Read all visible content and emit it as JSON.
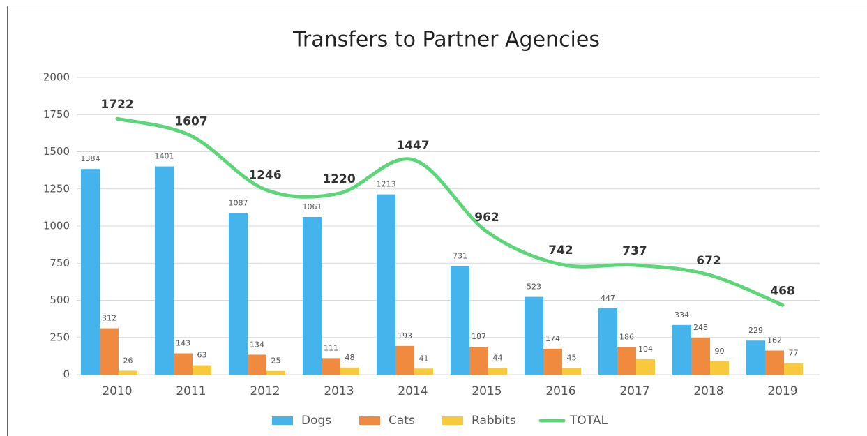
{
  "chart_data": {
    "type": "bar",
    "title": "Transfers to Partner Agencies",
    "categories": [
      "2010",
      "2011",
      "2012",
      "2013",
      "2014",
      "2015",
      "2016",
      "2017",
      "2018",
      "2019"
    ],
    "series": [
      {
        "name": "Dogs",
        "color": "#45b4ec",
        "values": [
          1384,
          1401,
          1087,
          1061,
          1213,
          731,
          523,
          447,
          334,
          229
        ]
      },
      {
        "name": "Cats",
        "color": "#f08a3e",
        "values": [
          312,
          143,
          134,
          111,
          193,
          187,
          174,
          186,
          248,
          162
        ]
      },
      {
        "name": "Rabbits",
        "color": "#f8c93c",
        "values": [
          26,
          63,
          25,
          48,
          41,
          44,
          45,
          104,
          90,
          77
        ]
      },
      {
        "name": "TOTAL",
        "type": "line",
        "color": "#5dd67a",
        "values": [
          1722,
          1607,
          1246,
          1220,
          1447,
          962,
          742,
          737,
          672,
          468
        ]
      }
    ],
    "ylim": [
      0,
      2000
    ],
    "yticks": [
      0,
      250,
      500,
      750,
      1000,
      1250,
      1500,
      1750,
      2000
    ],
    "grid": true,
    "legend": "bottom"
  }
}
